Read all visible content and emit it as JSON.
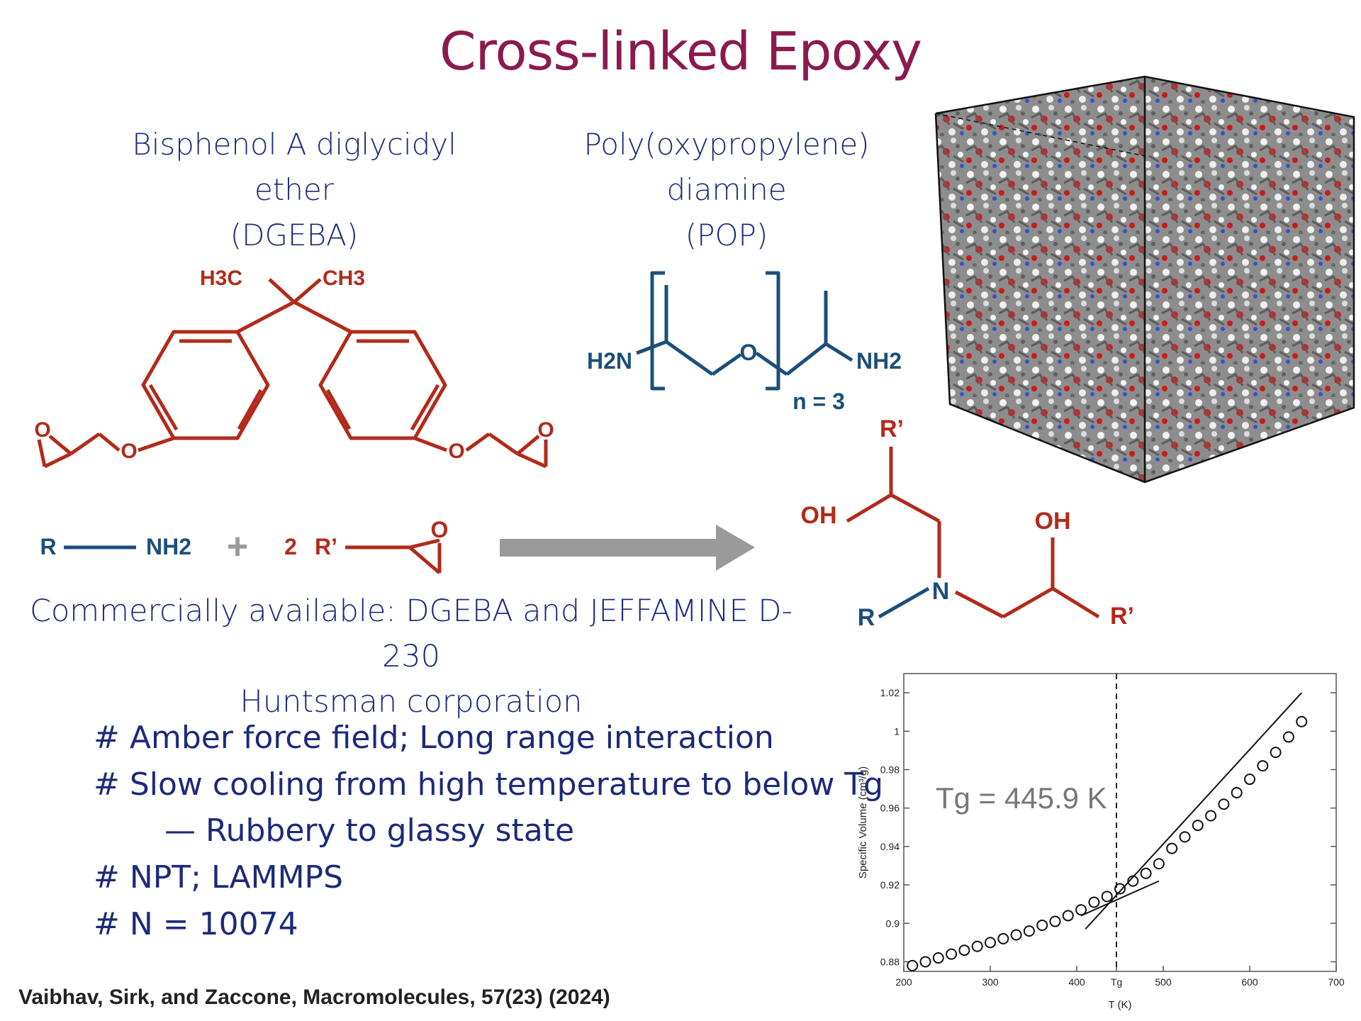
{
  "title": "Cross-linked Epoxy",
  "monomer1": {
    "name": "Bisphenol A diglycidyl ether",
    "abbr": "(DGEBA)"
  },
  "monomer2": {
    "name": "Poly(oxypropylene) diamine",
    "abbr": "(POP)"
  },
  "dgeba_labels": {
    "h3c": "H3C",
    "ch3": "CH3",
    "o1": "O",
    "o2": "O",
    "o3": "O",
    "o4": "O"
  },
  "pop_labels": {
    "h2n": "H2N",
    "o": "O",
    "nh2": "NH2",
    "n": "n = 3"
  },
  "reaction": {
    "r": "R",
    "nh2": "NH2",
    "plus": "+",
    "coef": "2",
    "rprime": "R’",
    "o": "O"
  },
  "product": {
    "r_top": "R’",
    "oh1": "OH",
    "oh2": "OH",
    "n": "N",
    "r": "R",
    "r_right": "R’"
  },
  "commercial": {
    "line1": "Commercially available: DGEBA and JEFFAMINE D-230",
    "line2": "Huntsman corporation"
  },
  "notes": [
    "# Amber force field; Long range interaction",
    "# Slow cooling from high temperature to below Tg",
    "— Rubbery to glassy state",
    "# NPT; LAMMPS",
    "# N = 10074"
  ],
  "citation": "Vaibhav, Sirk, and Zaccone, Macromolecules, 57(23) (2024)",
  "chart_data": {
    "type": "scatter",
    "xlabel": "T (K)",
    "ylabel": "Specific Volume (cm³/g)",
    "xlim": [
      200,
      700
    ],
    "ylim": [
      0.875,
      1.03
    ],
    "xticks": [
      "200",
      "300",
      "400",
      "Tg",
      "500",
      "600",
      "700"
    ],
    "yticks": [
      "0.88",
      "0.9",
      "0.92",
      "0.94",
      "0.96",
      "0.98",
      "1",
      "1.02"
    ],
    "annotation": "Tg = 445.9 K",
    "tg": 445.9,
    "x": [
      210,
      225,
      240,
      255,
      270,
      285,
      300,
      315,
      330,
      345,
      360,
      375,
      390,
      405,
      420,
      435,
      450,
      465,
      480,
      495,
      510,
      525,
      540,
      555,
      570,
      585,
      600,
      615,
      630,
      645,
      660
    ],
    "y": [
      0.878,
      0.88,
      0.882,
      0.884,
      0.886,
      0.888,
      0.89,
      0.892,
      0.894,
      0.896,
      0.899,
      0.901,
      0.904,
      0.907,
      0.911,
      0.914,
      0.918,
      0.922,
      0.926,
      0.931,
      0.939,
      0.945,
      0.951,
      0.956,
      0.962,
      0.968,
      0.975,
      0.982,
      0.989,
      0.997,
      1.005
    ],
    "fit_glassy": [
      [
        405,
        0.904
      ],
      [
        495,
        0.922
      ]
    ],
    "fit_rubbery": [
      [
        410,
        0.897
      ],
      [
        660,
        1.02
      ]
    ]
  },
  "colors": {
    "title": "#8b1a4f",
    "text": "#1c2a7a",
    "dgeba": "#b22a1a",
    "pop": "#1b4f7a",
    "arrow": "#9a9a9a"
  }
}
